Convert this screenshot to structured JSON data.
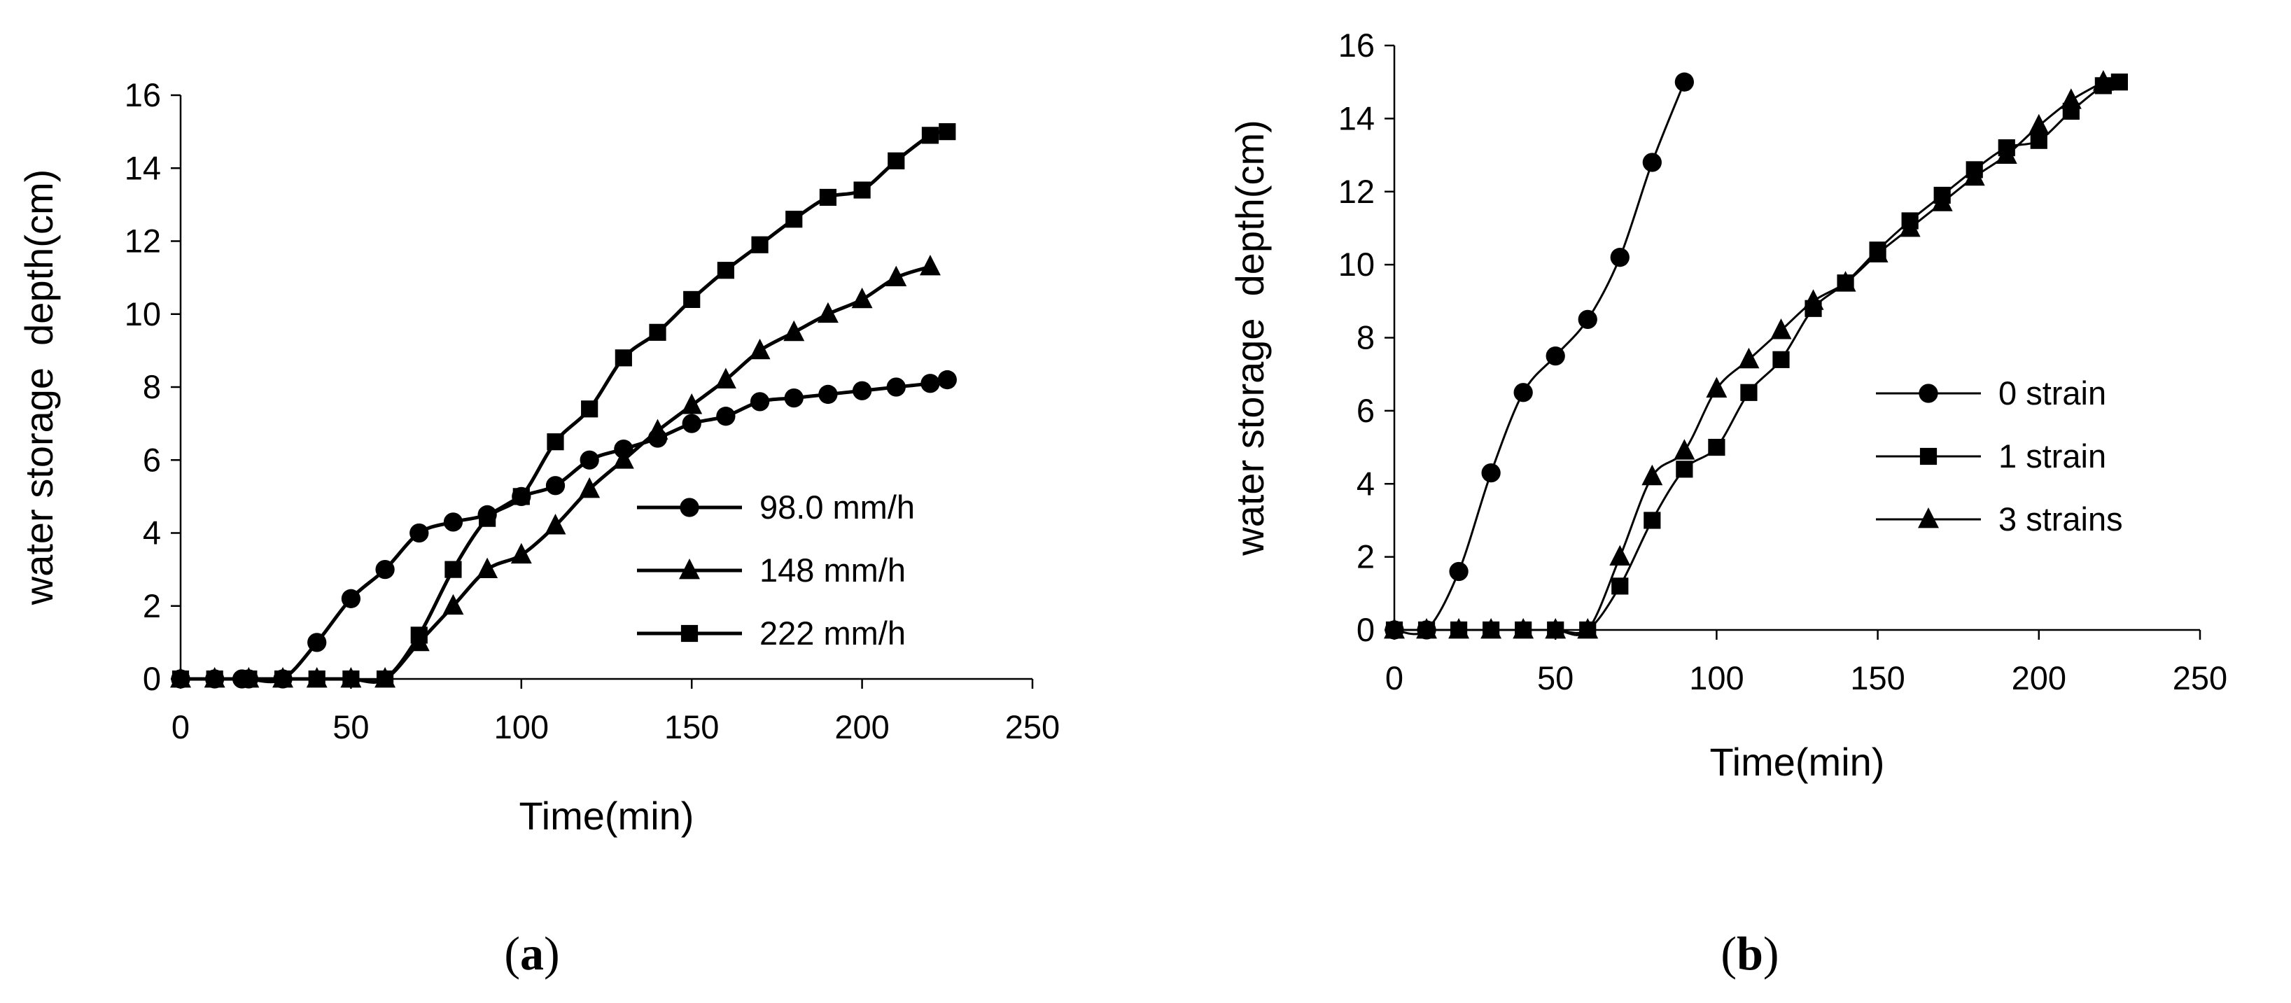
{
  "chart_data": [
    {
      "type": "line",
      "panel_label": "a",
      "xlabel": "Time(min)",
      "ylabel": "water storage  depth(cm)",
      "xlim": [
        0,
        250
      ],
      "ylim": [
        0,
        16
      ],
      "xticks": [
        0,
        50,
        100,
        150,
        200,
        250
      ],
      "yticks": [
        0,
        2,
        4,
        6,
        8,
        10,
        12,
        14,
        16
      ],
      "legend_position": "lower-right",
      "series": [
        {
          "name": "98.0 mm/h",
          "marker": "circle",
          "x": [
            0,
            10,
            18,
            20,
            30,
            40,
            50,
            60,
            70,
            80,
            90,
            100,
            110,
            120,
            130,
            140,
            150,
            160,
            170,
            180,
            190,
            200,
            210,
            220,
            225
          ],
          "y": [
            0,
            0,
            0,
            0,
            0,
            1.0,
            2.2,
            3.0,
            4.0,
            4.3,
            4.5,
            5.0,
            5.3,
            6.0,
            6.3,
            6.6,
            7.0,
            7.2,
            7.6,
            7.7,
            7.8,
            7.9,
            8.0,
            8.1,
            8.2
          ]
        },
        {
          "name": "148 mm/h",
          "marker": "triangle",
          "x": [
            0,
            10,
            20,
            30,
            40,
            50,
            60,
            70,
            80,
            90,
            100,
            110,
            120,
            130,
            140,
            150,
            160,
            170,
            180,
            190,
            200,
            210,
            220
          ],
          "y": [
            0,
            0,
            0,
            0,
            0,
            0,
            0,
            1.0,
            2.0,
            3.0,
            3.4,
            4.2,
            5.2,
            6.0,
            6.8,
            7.5,
            8.2,
            9.0,
            9.5,
            10.0,
            10.4,
            11.0,
            11.3
          ]
        },
        {
          "name": "222 mm/h",
          "marker": "square",
          "x": [
            0,
            10,
            20,
            30,
            40,
            50,
            60,
            70,
            80,
            90,
            100,
            110,
            120,
            130,
            140,
            150,
            160,
            170,
            180,
            190,
            200,
            210,
            220,
            225
          ],
          "y": [
            0,
            0,
            0,
            0,
            0,
            0,
            0,
            1.2,
            3.0,
            4.4,
            5.0,
            6.5,
            7.4,
            8.8,
            9.5,
            10.4,
            11.2,
            11.9,
            12.6,
            13.2,
            13.4,
            14.2,
            14.9,
            15.0
          ]
        }
      ]
    },
    {
      "type": "line",
      "panel_label": "b",
      "xlabel": "Time(min)",
      "ylabel": "water storage  depth(cm)",
      "xlim": [
        0,
        250
      ],
      "ylim": [
        0,
        16
      ],
      "xticks": [
        0,
        50,
        100,
        150,
        200,
        250
      ],
      "yticks": [
        0,
        2,
        4,
        6,
        8,
        10,
        12,
        14,
        16
      ],
      "legend_position": "middle-right",
      "series": [
        {
          "name": "0 strain",
          "marker": "circle",
          "x": [
            0,
            10,
            20,
            30,
            40,
            50,
            60,
            70,
            80,
            90
          ],
          "y": [
            0,
            0,
            1.6,
            4.3,
            6.5,
            7.5,
            8.5,
            10.2,
            12.8,
            15.0
          ]
        },
        {
          "name": "1 strain",
          "marker": "square",
          "x": [
            0,
            10,
            20,
            30,
            40,
            50,
            60,
            70,
            80,
            90,
            100,
            110,
            120,
            130,
            140,
            150,
            160,
            170,
            180,
            190,
            200,
            210,
            220,
            225
          ],
          "y": [
            0,
            0,
            0,
            0,
            0,
            0,
            0,
            1.2,
            3.0,
            4.4,
            5.0,
            6.5,
            7.4,
            8.8,
            9.5,
            10.4,
            11.2,
            11.9,
            12.6,
            13.2,
            13.4,
            14.2,
            14.9,
            15.0
          ]
        },
        {
          "name": "3 strains",
          "marker": "triangle",
          "x": [
            0,
            10,
            20,
            30,
            40,
            50,
            60,
            70,
            80,
            90,
            100,
            110,
            120,
            130,
            140,
            150,
            160,
            170,
            180,
            190,
            200,
            210,
            220
          ],
          "y": [
            0,
            0,
            0,
            0,
            0,
            0,
            0,
            2.0,
            4.2,
            4.9,
            6.6,
            7.4,
            8.2,
            9.0,
            9.5,
            10.3,
            11.0,
            11.7,
            12.4,
            13.0,
            13.8,
            14.5,
            15.0
          ]
        }
      ]
    }
  ],
  "captions": {
    "a": {
      "open": "(",
      "letter": "a",
      "close": ")"
    },
    "b": {
      "open": "(",
      "letter": "b",
      "close": ")"
    }
  }
}
